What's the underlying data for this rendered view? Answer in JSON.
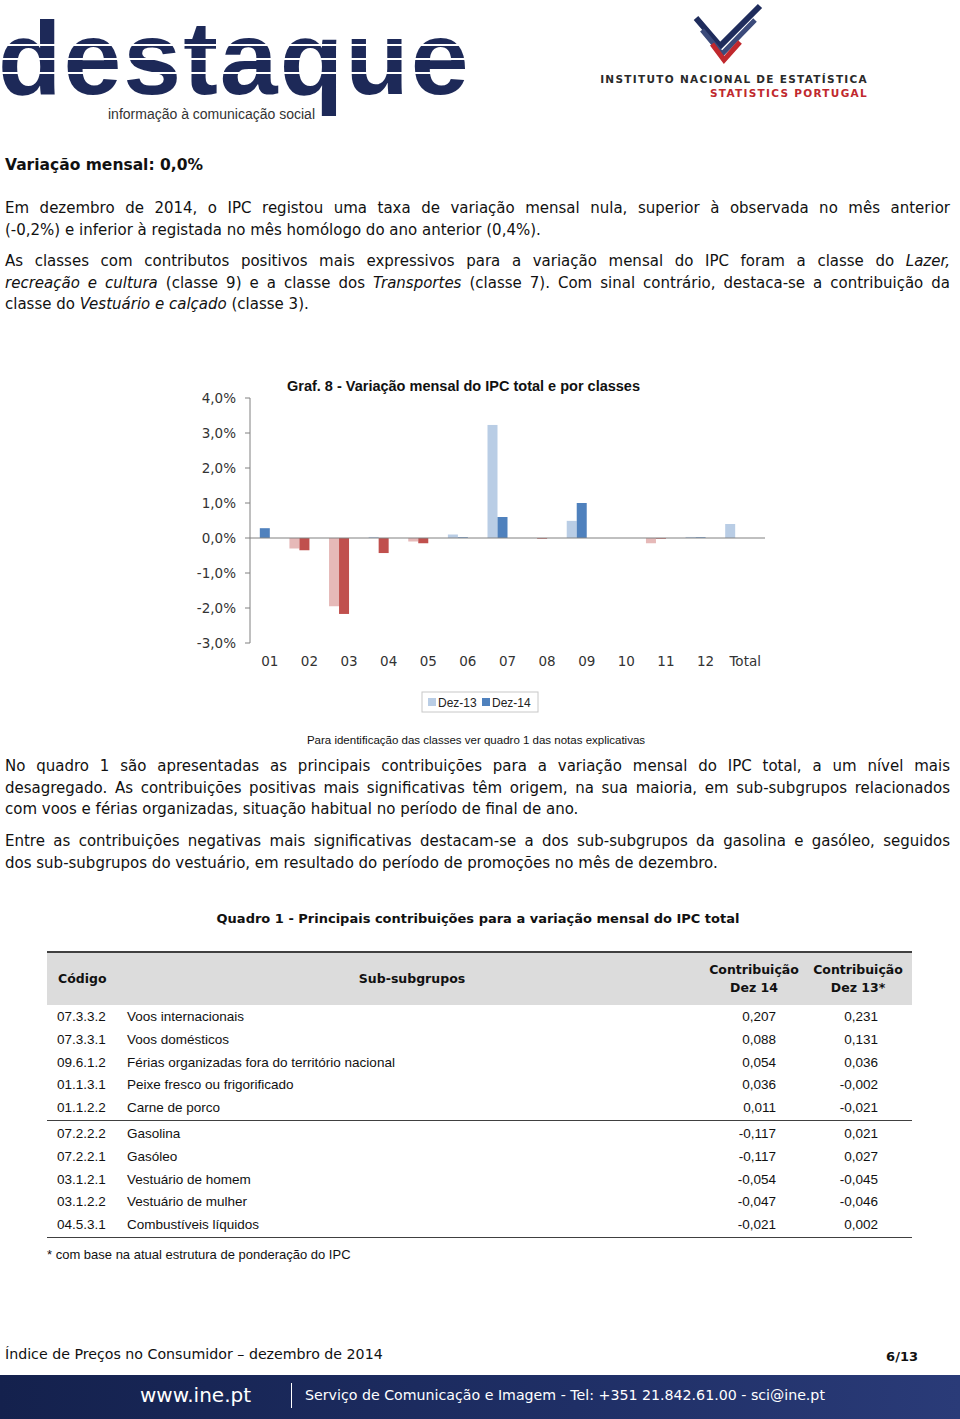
{
  "header": {
    "logo": "destaque",
    "tagline": "informação à comunicação social",
    "institute": "INSTITUTO NACIONAL DE ESTATÍSTICA",
    "institute_en": "STATISTICS PORTUGAL"
  },
  "section_title": "Variação mensal: 0,0%",
  "paragraphs": [
    {
      "lines": [
        [
          {
            "text": "Em dezembro de 2014, o IPC registou uma taxa de variação mensal nula, superior à observada no mês anterior"
          }
        ],
        [
          {
            "text": "(-0,2%) e inferior à registada no mês homólogo do ano anterior (0,4%)."
          }
        ]
      ]
    },
    {
      "lines": [
        [
          {
            "text": "As classes com contributos positivos mais expressivos para a variação mensal do IPC foram a classe do "
          },
          {
            "text": "Lazer,",
            "style": "italic"
          }
        ],
        [
          {
            "text": "recreação e cultura",
            "style": "italic"
          },
          {
            "text": " (classe 9) e a classe dos "
          },
          {
            "text": "Transportes",
            "style": "italic"
          },
          {
            "text": " (classe 7). Com sinal contrário, destaca-se a contribuição da"
          }
        ],
        [
          {
            "text": "classe do "
          },
          {
            "text": "Vestuário e calçado",
            "style": "italic"
          },
          {
            "text": " (classe 3)."
          }
        ]
      ]
    },
    {
      "lines": [
        [
          {
            "text": "No quadro 1 são apresentadas as principais contribuições para a variação mensal do IPC total, a um nível mais"
          }
        ],
        [
          {
            "text": "desagregado. As contribuições positivas mais significativas têm origem, na sua maioria, em sub-subgrupos relacionados"
          }
        ],
        [
          {
            "text": "com voos e férias organizadas, situação habitual no período de final de ano."
          }
        ]
      ]
    },
    {
      "lines": [
        [
          {
            "text": "Entre as contribuições negativas mais significativas destacam-se a dos sub-subgrupos da gasolina e gasóleo, seguidos"
          }
        ],
        [
          {
            "text": "dos sub-subgrupos do vestuário, em resultado do período de promoções no mês de dezembro."
          }
        ]
      ]
    }
  ],
  "chart_data": {
    "type": "bar",
    "title": "Graf. 8 - Variação mensal do IPC total e por classes",
    "categories": [
      "01",
      "02",
      "03",
      "04",
      "05",
      "06",
      "07",
      "08",
      "09",
      "10",
      "11",
      "12",
      "Total"
    ],
    "series": [
      {
        "name": "Dez-13",
        "color": "#b9cde5",
        "values": [
          0.0,
          -0.3,
          -1.95,
          0.03,
          -0.1,
          0.1,
          3.23,
          0.0,
          0.49,
          0.0,
          -0.15,
          0.03,
          0.4
        ],
        "colors": [
          "#b9cde5",
          "#e6b9b8",
          "#e6b9b8",
          "#b9cde5",
          "#e6b9b8",
          "#b9cde5",
          "#b9cde5",
          "#b9cde5",
          "#b9cde5",
          "#b9cde5",
          "#e6b9b8",
          "#b9cde5",
          "#b9cde5"
        ]
      },
      {
        "name": "Dez-14",
        "color": "#4f81bd",
        "values": [
          0.28,
          -0.35,
          -2.17,
          -0.43,
          -0.15,
          0.02,
          0.6,
          -0.02,
          1.0,
          0.0,
          -0.02,
          0.02,
          0.0
        ],
        "colors": [
          "#4f81bd",
          "#c0504d",
          "#c0504d",
          "#c0504d",
          "#c0504d",
          "#4f81bd",
          "#4f81bd",
          "#c0504d",
          "#4f81bd",
          "#4f81bd",
          "#c0504d",
          "#4f81bd",
          "#4f81bd"
        ]
      }
    ],
    "ylim": [
      -3,
      4
    ],
    "yticks": [
      {
        "value": -3,
        "label": "-3,0%"
      },
      {
        "value": -2,
        "label": "-2,0%"
      },
      {
        "value": -1,
        "label": "-1,0%"
      },
      {
        "value": 0,
        "label": "0,0%"
      },
      {
        "value": 1,
        "label": "1,0%"
      },
      {
        "value": 2,
        "label": "2,0%"
      },
      {
        "value": 3,
        "label": "3,0%"
      },
      {
        "value": 4,
        "label": "4,0%"
      }
    ],
    "grid": false,
    "legend": "bottom"
  },
  "chart_note": "Para identificação das classes ver quadro 1 das notas explicativas",
  "table": {
    "title": "Quadro 1 - Principais contribuições para a variação mensal do IPC total",
    "columns": [
      [
        "Código"
      ],
      [
        "Sub-subgrupos"
      ],
      [
        "Contribuição",
        "Dez 14"
      ],
      [
        "Contribuição",
        "Dez 13*"
      ]
    ],
    "groups": [
      [
        [
          "07.3.3.2",
          "Voos internacionais",
          "0,207",
          "0,231"
        ],
        [
          "07.3.3.1",
          "Voos domésticos",
          "0,088",
          "0,131"
        ],
        [
          "09.6.1.2",
          "Férias organizadas fora do território nacional",
          "0,054",
          "0,036"
        ],
        [
          "01.1.3.1",
          "Peixe fresco ou frigorificado",
          "0,036",
          "-0,002"
        ],
        [
          "01.1.2.2",
          "Carne de porco",
          "0,011",
          "-0,021"
        ]
      ],
      [
        [
          "07.2.2.2",
          "Gasolina",
          "-0,117",
          "0,021"
        ],
        [
          "07.2.2.1",
          "Gasóleo",
          "-0,117",
          "0,027"
        ],
        [
          "03.1.2.1",
          "Vestuário de homem",
          "-0,054",
          "-0,045"
        ],
        [
          "03.1.2.2",
          "Vestuário de mulher",
          "-0,047",
          "-0,046"
        ],
        [
          "04.5.3.1",
          "Combustíveis líquidos",
          "-0,021",
          "0,002"
        ]
      ]
    ],
    "footnote": "* com base na atual estrutura de ponderação do IPC"
  },
  "footer": {
    "title": "Índice de Preços no Consumidor – dezembro de 2014",
    "page": "6/13",
    "website": "www.ine.pt",
    "contact": "Serviço de Comunicação e Imagem - Tel: +351 21.842.61.00 - sci@ine.pt"
  }
}
